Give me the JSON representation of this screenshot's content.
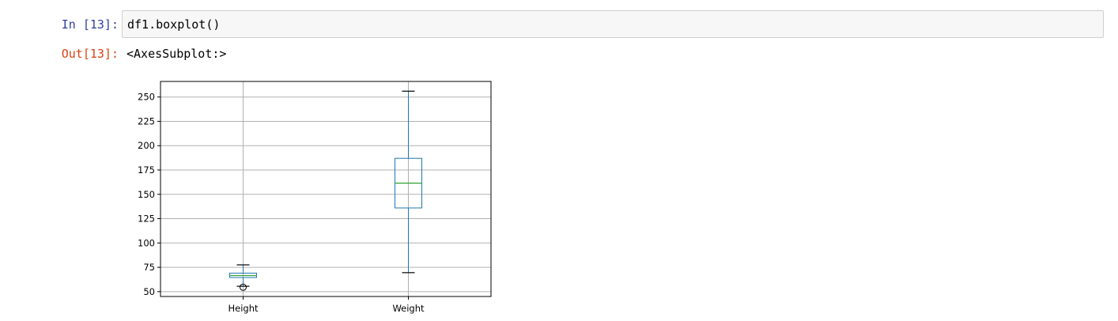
{
  "cell": {
    "in_prompt": "In [13]:",
    "code": "df1.boxplot()",
    "out_prompt": "Out[13]:",
    "output_text": "<AxesSubplot:>"
  },
  "chart_data": {
    "type": "box",
    "categories": [
      "Height",
      "Weight"
    ],
    "boxes": [
      {
        "category": "Height",
        "whisker_low": 55.5,
        "q1": 64.5,
        "median": 66.5,
        "q3": 69.0,
        "whisker_high": 77.5,
        "outliers": [
          54.5
        ]
      },
      {
        "category": "Weight",
        "whisker_low": 69.5,
        "q1": 136.0,
        "median": 161.5,
        "q3": 187.0,
        "whisker_high": 256.0,
        "outliers": []
      }
    ],
    "yticks": [
      50,
      75,
      100,
      125,
      150,
      175,
      200,
      225,
      250
    ],
    "ylim": [
      45,
      266
    ],
    "grid": true,
    "colors": {
      "box": "#1f77b4",
      "median": "#2ca02c",
      "cap": "#000000",
      "grid": "#b0b0b0"
    }
  }
}
